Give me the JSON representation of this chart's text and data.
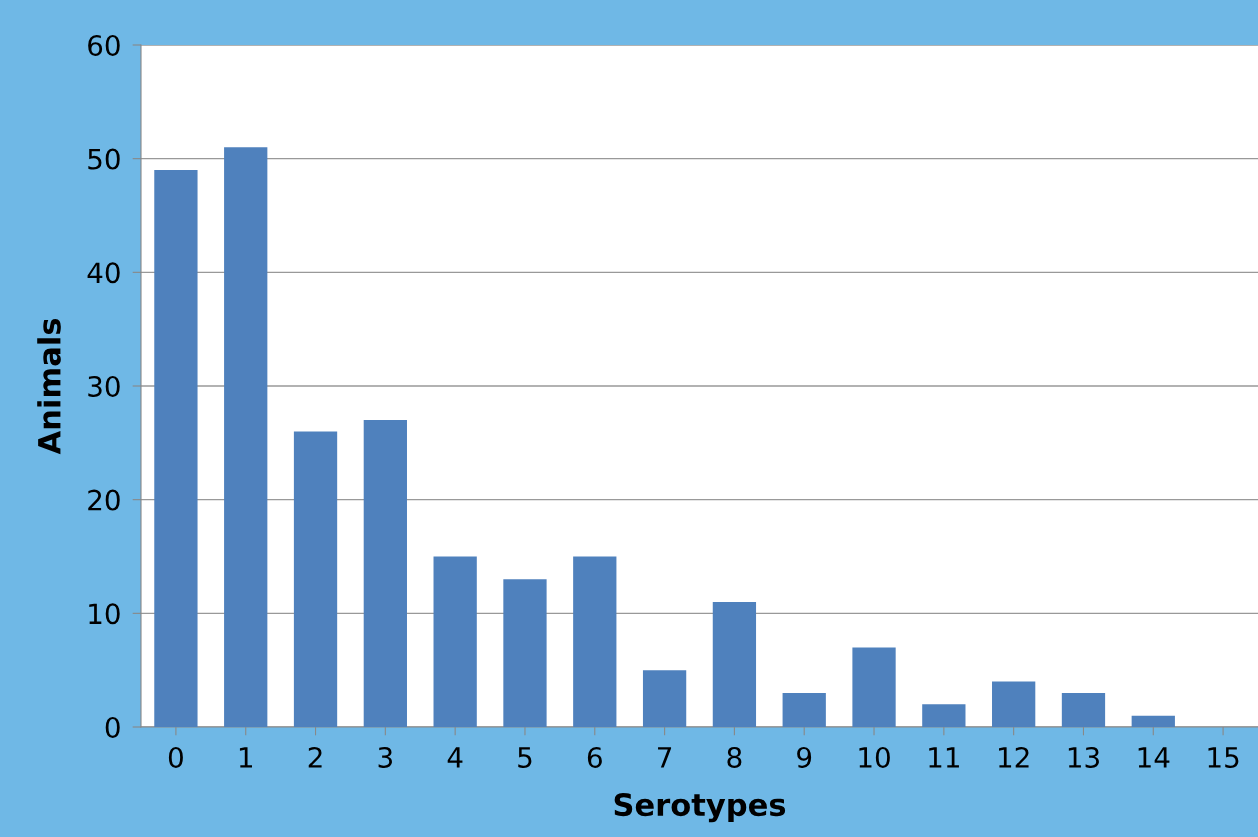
{
  "chart_data": {
    "type": "bar",
    "xlabel": "Serotypes",
    "ylabel": "Animals",
    "categories": [
      "0",
      "1",
      "2",
      "3",
      "4",
      "5",
      "6",
      "7",
      "8",
      "9",
      "10",
      "11",
      "12",
      "13",
      "14",
      "15"
    ],
    "values": [
      49,
      51,
      26,
      27,
      15,
      13,
      15,
      5,
      11,
      3,
      7,
      2,
      4,
      3,
      1,
      0
    ],
    "color": "#4f81bd",
    "ylim": [
      0,
      60
    ],
    "yticks": [
      0,
      10,
      20,
      30,
      40,
      50,
      60
    ],
    "grid": "y",
    "legend": false
  }
}
